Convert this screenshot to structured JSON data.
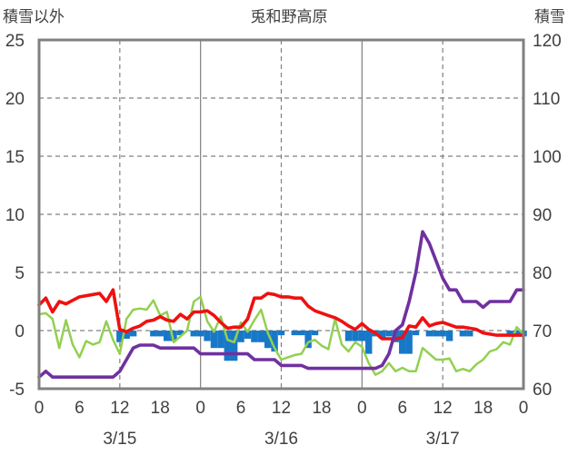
{
  "chart_data": {
    "type": "line",
    "title": "兎和野高原",
    "ylabel_left": "積雪以外",
    "ylabel_right": "積雪",
    "ylim_left": [
      -5,
      25
    ],
    "ylim_right": [
      60,
      120
    ],
    "yticks_left": [
      -5,
      0,
      5,
      10,
      15,
      20,
      25
    ],
    "yticks_right": [
      60,
      70,
      80,
      90,
      100,
      110,
      120
    ],
    "xlim_hours": [
      0,
      72
    ],
    "x_tick_labels": [
      "0",
      "6",
      "12",
      "18",
      "0",
      "6",
      "12",
      "18",
      "0",
      "6",
      "12",
      "18",
      "0"
    ],
    "date_labels": [
      "3/15",
      "3/16",
      "3/17"
    ],
    "grid": "dashed",
    "colors": {
      "temperature": "#ee1111",
      "green_series": "#92d050",
      "snow_depth": "#7030a0",
      "bars": "#1878c8",
      "axes": "#808080"
    },
    "series": [
      {
        "key": "red",
        "axis": "left",
        "x": [
          0,
          1,
          2,
          3,
          4,
          5,
          6,
          7,
          8,
          9,
          10,
          11,
          12,
          13,
          14,
          15,
          16,
          17,
          18,
          19,
          20,
          21,
          22,
          23,
          24,
          25,
          26,
          27,
          28,
          29,
          30,
          31,
          32,
          33,
          34,
          35,
          36,
          37,
          38,
          39,
          40,
          41,
          42,
          43,
          44,
          45,
          46,
          47,
          48,
          49,
          50,
          51,
          52,
          53,
          54,
          55,
          56,
          57,
          58,
          59,
          60,
          61,
          62,
          63,
          64,
          65,
          66,
          67,
          68,
          69,
          70,
          71,
          72
        ],
        "values": [
          2.2,
          2.8,
          1.6,
          2.5,
          2.3,
          2.6,
          2.9,
          3.0,
          3.1,
          3.2,
          2.5,
          3.5,
          0.1,
          -0.1,
          0.2,
          0.4,
          0.8,
          0.9,
          1.2,
          0.9,
          0.8,
          1.4,
          1.0,
          1.6,
          1.6,
          1.7,
          1.3,
          0.7,
          0.2,
          0.3,
          0.3,
          1.0,
          2.8,
          2.8,
          3.2,
          3.1,
          2.9,
          2.9,
          2.8,
          2.8,
          2.1,
          1.7,
          1.5,
          1.3,
          1.1,
          0.8,
          0.4,
          0.1,
          0.6,
          0.1,
          -0.2,
          -0.7,
          -0.7,
          -0.7,
          -0.6,
          0.4,
          0.3,
          1.1,
          0.4,
          0.6,
          0.7,
          0.5,
          0.3,
          0.3,
          0.2,
          0.1,
          -0.2,
          -0.3,
          -0.4,
          -0.4,
          -0.4,
          -0.4,
          -0.4
        ]
      },
      {
        "key": "green",
        "axis": "left",
        "x": [
          0,
          1,
          2,
          3,
          4,
          5,
          6,
          7,
          8,
          9,
          10,
          11,
          12,
          13,
          14,
          15,
          16,
          17,
          18,
          19,
          20,
          21,
          22,
          23,
          24,
          25,
          26,
          27,
          28,
          29,
          30,
          31,
          32,
          33,
          34,
          35,
          36,
          37,
          38,
          39,
          40,
          41,
          42,
          43,
          44,
          45,
          46,
          47,
          48,
          49,
          50,
          51,
          52,
          53,
          54,
          55,
          56,
          57,
          58,
          59,
          60,
          61,
          62,
          63,
          64,
          65,
          66,
          67,
          68,
          69,
          70,
          71,
          72
        ],
        "values": [
          1.4,
          1.5,
          1.0,
          -1.5,
          0.9,
          -1.2,
          -2.3,
          -0.9,
          -1.2,
          -1.0,
          0.8,
          -0.8,
          -2.0,
          1.0,
          1.8,
          1.9,
          1.8,
          2.6,
          1.3,
          1.6,
          -1.0,
          -0.5,
          0.0,
          2.5,
          2.9,
          0.8,
          -0.1,
          1.2,
          -0.8,
          -1.0,
          0.7,
          -0.1,
          0.9,
          1.8,
          -0.2,
          -1.5,
          -2.5,
          -2.3,
          -2.1,
          -2.0,
          -1.0,
          -0.8,
          -1.3,
          -1.6,
          1.0,
          -1.2,
          -1.8,
          -1.0,
          -1.4,
          -2.8,
          -3.8,
          -3.5,
          -2.8,
          -3.5,
          -3.2,
          -3.5,
          -3.5,
          -1.5,
          -2.0,
          -2.5,
          -2.5,
          -2.4,
          -3.5,
          -3.3,
          -3.5,
          -2.9,
          -2.5,
          -1.8,
          -1.6,
          -1.0,
          -1.2,
          0.3,
          -0.3
        ]
      },
      {
        "key": "purple",
        "axis": "right",
        "x": [
          0,
          1,
          2,
          3,
          4,
          5,
          6,
          7,
          8,
          9,
          10,
          11,
          12,
          13,
          14,
          15,
          16,
          17,
          18,
          19,
          20,
          21,
          22,
          23,
          24,
          25,
          26,
          27,
          28,
          29,
          30,
          31,
          32,
          33,
          34,
          35,
          36,
          37,
          38,
          39,
          40,
          41,
          42,
          43,
          44,
          45,
          46,
          47,
          48,
          49,
          50,
          51,
          52,
          53,
          54,
          55,
          56,
          57,
          58,
          59,
          60,
          61,
          62,
          63,
          64,
          65,
          66,
          67,
          68,
          69,
          70,
          71,
          72
        ],
        "values": [
          62,
          63,
          62,
          62,
          62,
          62,
          62,
          62,
          62,
          62,
          62,
          62,
          63,
          65,
          67,
          67.5,
          67.5,
          67.5,
          67,
          67,
          67,
          67,
          67,
          67,
          66,
          66,
          66,
          66,
          66,
          66,
          66,
          66,
          65,
          65,
          65,
          65,
          64,
          64,
          64,
          64,
          63.5,
          63.5,
          63.5,
          63.5,
          63.5,
          63.5,
          63.5,
          63.5,
          63.5,
          63.5,
          63.5,
          64,
          66,
          70,
          71,
          75,
          80,
          87,
          85,
          82,
          79,
          77,
          77,
          75,
          75,
          75,
          74,
          75,
          75,
          75,
          75,
          77,
          77
        ]
      }
    ],
    "bars": {
      "key": "blue",
      "axis": "left",
      "x": [
        12,
        13,
        14,
        15,
        16,
        17,
        18,
        19,
        20,
        21,
        22,
        23,
        24,
        25,
        26,
        27,
        28,
        29,
        30,
        31,
        32,
        33,
        34,
        35,
        36,
        37,
        38,
        39,
        40,
        41,
        42,
        43,
        44,
        45,
        46,
        47,
        48,
        49,
        50,
        51,
        52,
        53,
        54,
        55,
        56,
        57,
        58,
        59,
        60,
        61,
        62,
        63,
        64,
        65,
        66,
        67,
        68,
        69,
        70,
        71,
        72
      ],
      "values": [
        -1.0,
        -0.7,
        -0.5,
        0,
        0,
        -0.5,
        -0.5,
        -0.9,
        -0.9,
        -0.4,
        0,
        -0.5,
        -0.5,
        -0.9,
        -1.5,
        -1.5,
        -2.6,
        -2.6,
        -1.0,
        -0.7,
        -1.0,
        -1.0,
        -1.5,
        -1.8,
        -0.4,
        0,
        -0.4,
        -0.4,
        -1.5,
        -0.4,
        0,
        0,
        0,
        0,
        -0.9,
        -0.9,
        -0.9,
        -2.0,
        -0.5,
        -0.7,
        -0.5,
        -1.0,
        -2.0,
        -2.0,
        -0.4,
        0,
        -0.5,
        -0.5,
        -0.5,
        -0.9,
        0,
        -0.5,
        -0.5,
        0,
        0,
        0,
        0,
        0,
        -0.5,
        -0.5,
        -0.5
      ]
    }
  }
}
